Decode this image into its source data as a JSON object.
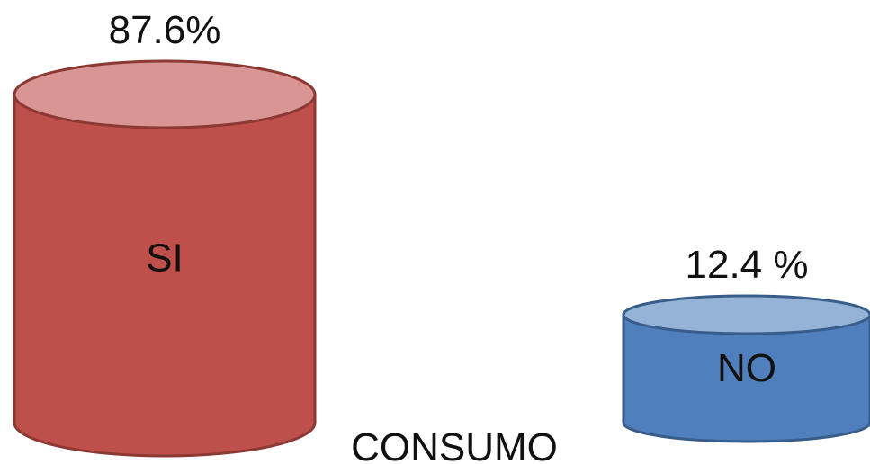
{
  "chart_data": {
    "type": "bar",
    "style": "3d-cylinder",
    "title": "",
    "xlabel": "CONSUMO",
    "ylabel": "",
    "categories": [
      "SI",
      "NO"
    ],
    "values": [
      87.6,
      12.4
    ],
    "value_labels": [
      "87.6%",
      "12.4 %"
    ],
    "colors": {
      "SI": {
        "body": "#be4f4a",
        "top": "#d99594",
        "edge": "#8c3833"
      },
      "NO": {
        "body": "#4f80bd",
        "top": "#95b3d7",
        "edge": "#385d8a"
      }
    },
    "legend": "none",
    "grid": false
  }
}
